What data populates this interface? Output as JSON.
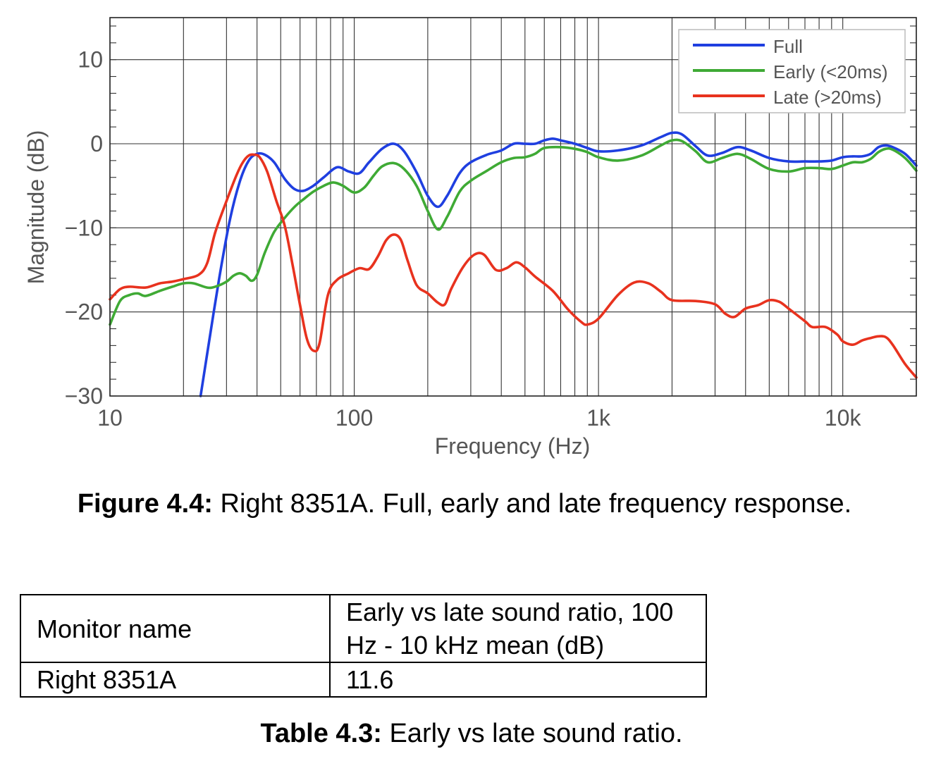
{
  "chart_data": {
    "type": "line",
    "title": "",
    "xlabel": "Frequency (Hz)",
    "ylabel": "Magnitude (dB)",
    "xscale": "log",
    "xlim": [
      10,
      20000
    ],
    "ylim": [
      -30,
      15
    ],
    "xticks": [
      10,
      100,
      1000,
      10000
    ],
    "xtick_labels": [
      "10",
      "100",
      "1k",
      "10k"
    ],
    "yticks": [
      10,
      0,
      -10,
      -20,
      -30
    ],
    "ytick_labels": [
      "10",
      "0",
      "−10",
      "−20",
      "−30"
    ],
    "grid": true,
    "legend_position": "top-right",
    "series": [
      {
        "name": "Full",
        "color": "#1f3fe0",
        "points": [
          [
            23.5,
            -30
          ],
          [
            25,
            -25
          ],
          [
            28,
            -16
          ],
          [
            31,
            -9
          ],
          [
            34,
            -4.5
          ],
          [
            37,
            -2
          ],
          [
            40,
            -1.2
          ],
          [
            43,
            -1.3
          ],
          [
            47,
            -2.2
          ],
          [
            52,
            -4.2
          ],
          [
            57,
            -5.4
          ],
          [
            62,
            -5.6
          ],
          [
            68,
            -5
          ],
          [
            75,
            -4
          ],
          [
            85,
            -2.8
          ],
          [
            95,
            -3.3
          ],
          [
            105,
            -3.5
          ],
          [
            115,
            -2.2
          ],
          [
            130,
            -0.6
          ],
          [
            145,
            0
          ],
          [
            160,
            -0.9
          ],
          [
            180,
            -3.4
          ],
          [
            200,
            -6.2
          ],
          [
            220,
            -7.5
          ],
          [
            240,
            -6.2
          ],
          [
            270,
            -3.5
          ],
          [
            300,
            -2.2
          ],
          [
            350,
            -1.3
          ],
          [
            400,
            -0.8
          ],
          [
            450,
            0
          ],
          [
            500,
            0
          ],
          [
            550,
            0
          ],
          [
            600,
            0.4
          ],
          [
            650,
            0.6
          ],
          [
            700,
            0.4
          ],
          [
            800,
            0
          ],
          [
            900,
            -0.5
          ],
          [
            1000,
            -0.9
          ],
          [
            1200,
            -0.8
          ],
          [
            1500,
            -0.2
          ],
          [
            1800,
            0.8
          ],
          [
            2000,
            1.3
          ],
          [
            2200,
            1.1
          ],
          [
            2500,
            -0.3
          ],
          [
            2800,
            -1.4
          ],
          [
            3200,
            -1.1
          ],
          [
            3700,
            -0.4
          ],
          [
            4200,
            -0.8
          ],
          [
            5000,
            -1.7
          ],
          [
            6000,
            -2.1
          ],
          [
            7000,
            -2.1
          ],
          [
            8000,
            -2.1
          ],
          [
            9000,
            -2.0
          ],
          [
            10000,
            -1.6
          ],
          [
            11000,
            -1.5
          ],
          [
            12000,
            -1.5
          ],
          [
            13000,
            -1.2
          ],
          [
            14000,
            -0.4
          ],
          [
            15000,
            -0.2
          ],
          [
            16000,
            -0.4
          ],
          [
            18000,
            -1.2
          ],
          [
            20000,
            -2.6
          ]
        ]
      },
      {
        "name": "Early (<20ms)",
        "color": "#3faa35",
        "points": [
          [
            10,
            -21.5
          ],
          [
            11,
            -18.7
          ],
          [
            12,
            -18
          ],
          [
            13,
            -17.8
          ],
          [
            14,
            -18.1
          ],
          [
            16,
            -17.5
          ],
          [
            18,
            -17
          ],
          [
            20,
            -16.6
          ],
          [
            22,
            -16.6
          ],
          [
            25,
            -17.1
          ],
          [
            27,
            -17
          ],
          [
            30,
            -16.4
          ],
          [
            32,
            -15.7
          ],
          [
            34,
            -15.4
          ],
          [
            36,
            -15.7
          ],
          [
            38,
            -16.3
          ],
          [
            40,
            -15.6
          ],
          [
            43,
            -13
          ],
          [
            47,
            -10.5
          ],
          [
            52,
            -8.8
          ],
          [
            57,
            -7.5
          ],
          [
            62,
            -6.6
          ],
          [
            68,
            -5.7
          ],
          [
            75,
            -5
          ],
          [
            82,
            -4.6
          ],
          [
            90,
            -5
          ],
          [
            100,
            -5.8
          ],
          [
            110,
            -5.2
          ],
          [
            120,
            -3.8
          ],
          [
            130,
            -2.7
          ],
          [
            145,
            -2.3
          ],
          [
            160,
            -3
          ],
          [
            180,
            -5
          ],
          [
            200,
            -8
          ],
          [
            220,
            -10.2
          ],
          [
            240,
            -8.7
          ],
          [
            270,
            -5.7
          ],
          [
            300,
            -4.4
          ],
          [
            350,
            -3.2
          ],
          [
            400,
            -2.2
          ],
          [
            450,
            -1.7
          ],
          [
            500,
            -1.6
          ],
          [
            550,
            -1.2
          ],
          [
            600,
            -0.5
          ],
          [
            700,
            -0.4
          ],
          [
            800,
            -0.6
          ],
          [
            900,
            -1
          ],
          [
            1000,
            -1.6
          ],
          [
            1200,
            -2
          ],
          [
            1500,
            -1.4
          ],
          [
            1800,
            -0.2
          ],
          [
            2000,
            0.4
          ],
          [
            2200,
            0.3
          ],
          [
            2500,
            -0.9
          ],
          [
            2800,
            -2.2
          ],
          [
            3200,
            -1.7
          ],
          [
            3700,
            -1.2
          ],
          [
            4200,
            -1.8
          ],
          [
            5000,
            -3
          ],
          [
            6000,
            -3.3
          ],
          [
            7000,
            -2.9
          ],
          [
            8000,
            -2.9
          ],
          [
            9000,
            -3
          ],
          [
            10000,
            -2.6
          ],
          [
            11000,
            -2.2
          ],
          [
            12000,
            -2.2
          ],
          [
            13000,
            -1.8
          ],
          [
            14000,
            -1
          ],
          [
            15000,
            -0.6
          ],
          [
            16000,
            -0.7
          ],
          [
            18000,
            -1.7
          ],
          [
            20000,
            -3.2
          ]
        ]
      },
      {
        "name": "Late (>20ms)",
        "color": "#e8321e",
        "points": [
          [
            10,
            -18.5
          ],
          [
            11,
            -17.3
          ],
          [
            12,
            -17
          ],
          [
            14,
            -17.1
          ],
          [
            16,
            -16.6
          ],
          [
            18,
            -16.4
          ],
          [
            20,
            -16.1
          ],
          [
            23,
            -15.6
          ],
          [
            25,
            -14.2
          ],
          [
            27,
            -10.5
          ],
          [
            30,
            -6.8
          ],
          [
            33,
            -3.7
          ],
          [
            35,
            -2.2
          ],
          [
            37,
            -1.4
          ],
          [
            39,
            -1.3
          ],
          [
            41,
            -1.6
          ],
          [
            44,
            -3.3
          ],
          [
            48,
            -6.8
          ],
          [
            52,
            -9.8
          ],
          [
            56,
            -14.5
          ],
          [
            60,
            -19.2
          ],
          [
            64,
            -23.2
          ],
          [
            68,
            -24.6
          ],
          [
            72,
            -23.8
          ],
          [
            78,
            -18
          ],
          [
            85,
            -16.2
          ],
          [
            95,
            -15.4
          ],
          [
            105,
            -14.8
          ],
          [
            115,
            -14.9
          ],
          [
            125,
            -13.4
          ],
          [
            135,
            -11.5
          ],
          [
            145,
            -10.8
          ],
          [
            155,
            -11.4
          ],
          [
            165,
            -13.8
          ],
          [
            180,
            -16.8
          ],
          [
            200,
            -17.8
          ],
          [
            220,
            -18.9
          ],
          [
            235,
            -19.1
          ],
          [
            250,
            -17.2
          ],
          [
            280,
            -14.6
          ],
          [
            310,
            -13.2
          ],
          [
            340,
            -13.2
          ],
          [
            380,
            -15
          ],
          [
            420,
            -14.8
          ],
          [
            460,
            -14.1
          ],
          [
            500,
            -14.7
          ],
          [
            550,
            -15.8
          ],
          [
            650,
            -17.5
          ],
          [
            750,
            -19.7
          ],
          [
            850,
            -21.2
          ],
          [
            900,
            -21.5
          ],
          [
            1000,
            -20.8
          ],
          [
            1200,
            -18
          ],
          [
            1400,
            -16.5
          ],
          [
            1600,
            -16.6
          ],
          [
            1800,
            -17.6
          ],
          [
            2000,
            -18.6
          ],
          [
            2500,
            -18.7
          ],
          [
            3000,
            -19.1
          ],
          [
            3300,
            -20.2
          ],
          [
            3600,
            -20.6
          ],
          [
            4000,
            -19.6
          ],
          [
            4500,
            -19.2
          ],
          [
            5000,
            -18.6
          ],
          [
            5500,
            -18.8
          ],
          [
            6000,
            -19.6
          ],
          [
            7000,
            -21.1
          ],
          [
            7500,
            -21.8
          ],
          [
            8500,
            -21.8
          ],
          [
            9500,
            -22.7
          ],
          [
            10000,
            -23.5
          ],
          [
            11000,
            -23.9
          ],
          [
            12000,
            -23.4
          ],
          [
            13000,
            -23.1
          ],
          [
            14000,
            -22.9
          ],
          [
            15000,
            -23
          ],
          [
            16000,
            -23.9
          ],
          [
            18000,
            -26.2
          ],
          [
            20000,
            -27.8
          ]
        ]
      }
    ]
  },
  "figure_caption": {
    "label": "Figure 4.4:",
    "text": " Right 8351A. Full, early and late frequency response."
  },
  "table": {
    "headers": [
      "Monitor name",
      "Early vs late sound ratio, 100 Hz - 10 kHz mean (dB)"
    ],
    "rows": [
      [
        "Right 8351A",
        "11.6"
      ]
    ]
  },
  "table_caption": {
    "label": "Table 4.3:",
    "text": " Early vs late sound ratio."
  }
}
